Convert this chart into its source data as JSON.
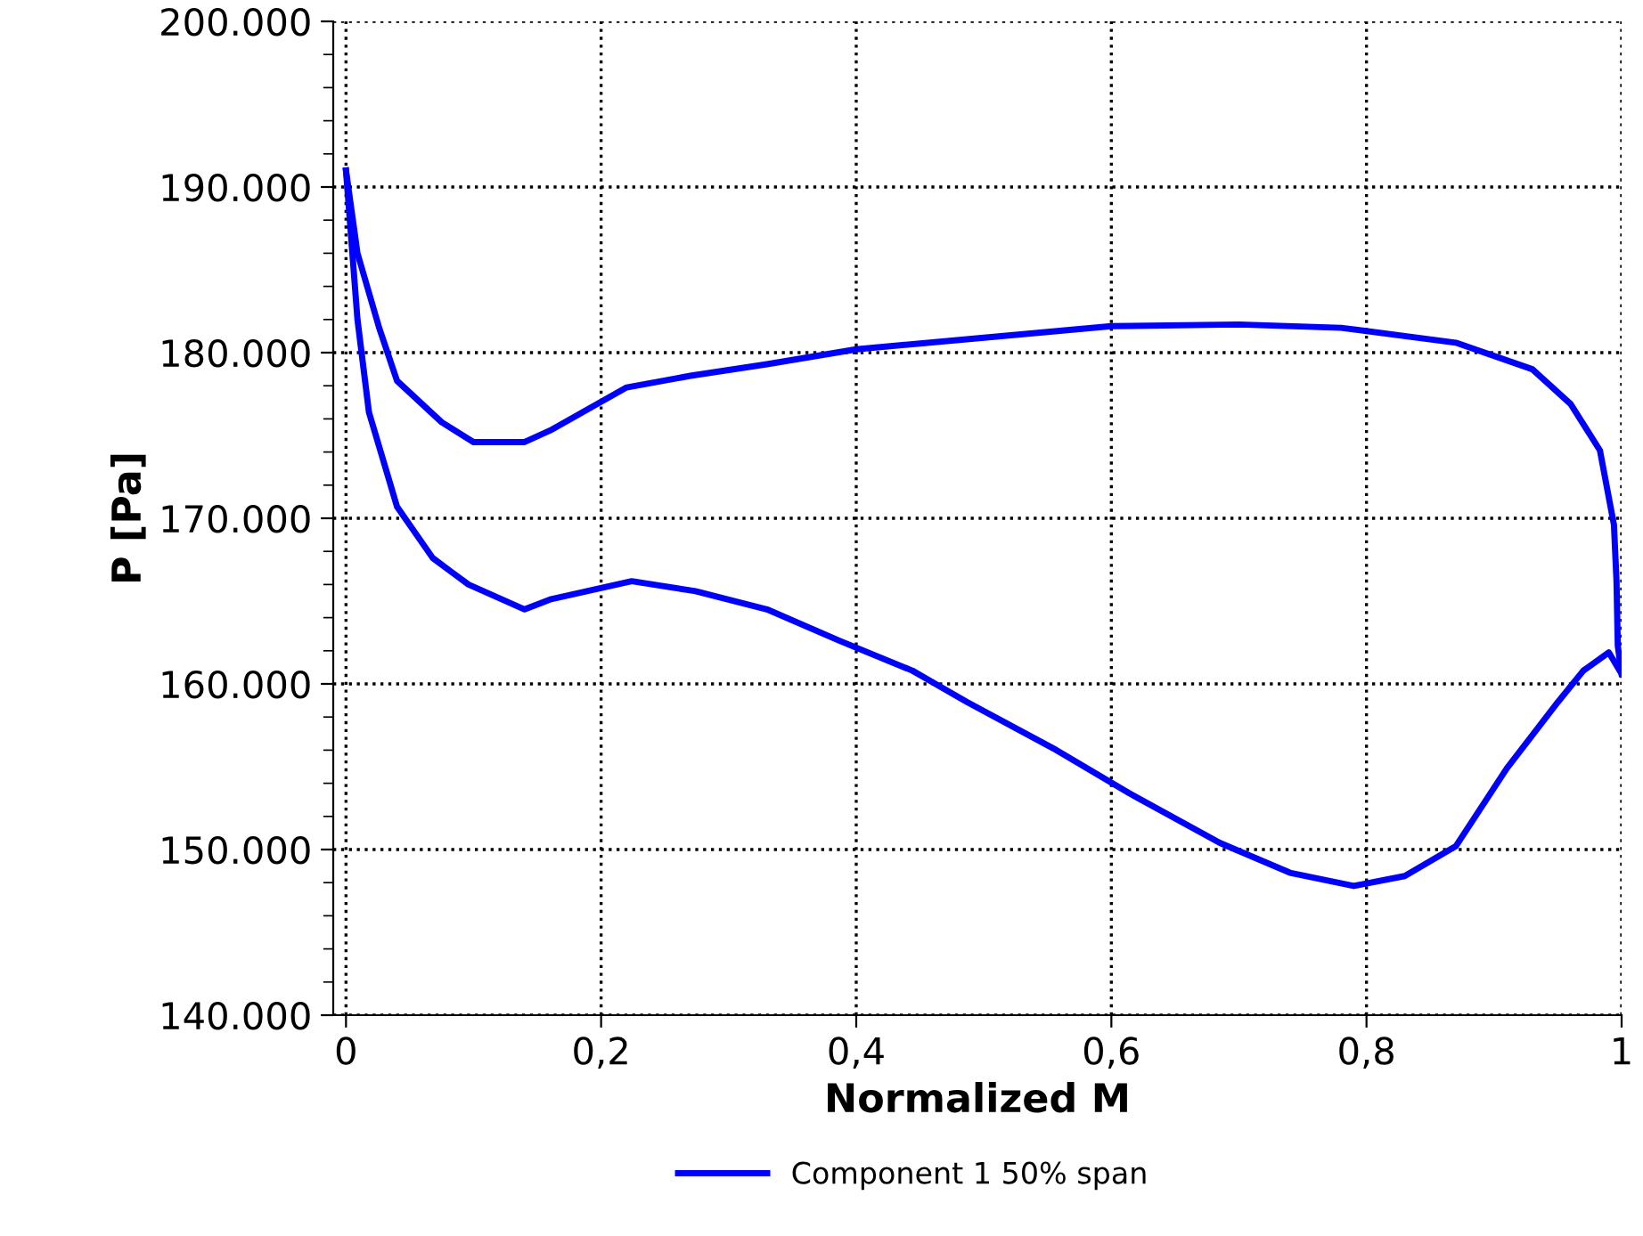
{
  "chart_data": {
    "type": "line",
    "xlabel": "Normalized M",
    "ylabel": "P [Pa]",
    "series": [
      {
        "name": "Component 1 50% span",
        "color": "#0000ff",
        "x": [
          0,
          0.009,
          0.026,
          0.04,
          0.075,
          0.1,
          0.14,
          0.16,
          0.19,
          0.22,
          0.27,
          0.33,
          0.4,
          0.5,
          0.6,
          0.7,
          0.78,
          0.87,
          0.93,
          0.96,
          0.983,
          0.994,
          0.996,
          0.997,
          1.0
        ],
        "values": [
          191000,
          186000,
          181500,
          178300,
          175800,
          174600,
          174600,
          175300,
          176600,
          177900,
          178600,
          179300,
          180200,
          180900,
          181600,
          181700,
          181500,
          180600,
          179000,
          176900,
          174100,
          169600,
          166200,
          162300,
          160600
        ]
      },
      {
        "color": "#0000ff",
        "x": [
          0,
          0.009,
          0.018,
          0.04,
          0.068,
          0.096,
          0.14,
          0.16,
          0.224,
          0.274,
          0.33,
          0.387,
          0.444,
          0.487,
          0.557,
          0.614,
          0.685,
          0.74,
          0.79,
          0.83,
          0.87,
          0.91,
          0.95,
          0.97,
          0.99,
          1.0
        ],
        "values": [
          191000,
          182000,
          176400,
          170700,
          167600,
          166000,
          164500,
          165100,
          166200,
          165600,
          164500,
          162600,
          160800,
          158900,
          156000,
          153400,
          150400,
          148600,
          147800,
          148400,
          150200,
          154900,
          158900,
          160800,
          161900,
          160600
        ]
      }
    ],
    "xlim": [
      -0.01,
      1.0
    ],
    "ylim": [
      140000,
      200000
    ],
    "xticks": [
      {
        "value": 0,
        "label": "0"
      },
      {
        "value": 0.2,
        "label": "0,2"
      },
      {
        "value": 0.4,
        "label": "0,4"
      },
      {
        "value": 0.6,
        "label": "0,6"
      },
      {
        "value": 0.8,
        "label": "0,8"
      },
      {
        "value": 1,
        "label": "1"
      }
    ],
    "yticks": [
      {
        "value": 140000,
        "label": "140.000"
      },
      {
        "value": 150000,
        "label": "150.000"
      },
      {
        "value": 160000,
        "label": "160.000"
      },
      {
        "value": 170000,
        "label": "170.000"
      },
      {
        "value": 180000,
        "label": "180.000"
      },
      {
        "value": 190000,
        "label": "190.000"
      },
      {
        "value": 200000,
        "label": "200.000"
      }
    ],
    "grid": true,
    "legend": "bottom",
    "line_style": "solid",
    "marker": "none"
  }
}
